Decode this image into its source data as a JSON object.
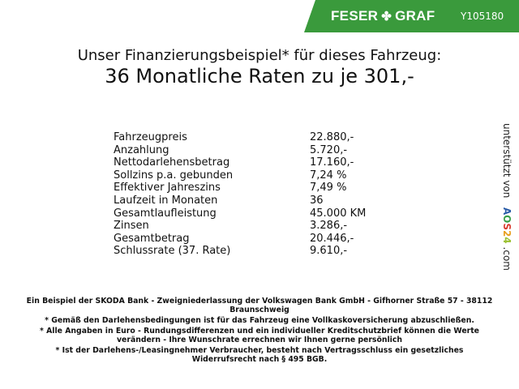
{
  "header": {
    "brand": "FESER",
    "brand2": "GRAF",
    "vehicle_id": "Y105180",
    "brand_color": "#3a9a3c"
  },
  "title": {
    "line1": "Unser Finanzierungsbeispiel* für dieses Fahrzeug:",
    "line2": "36 Monatliche Raten zu je 301,-"
  },
  "rows": [
    {
      "label": "Fahrzeugpreis",
      "value": "22.880,-"
    },
    {
      "label": "Anzahlung",
      "value": "5.720,-"
    },
    {
      "label": "Nettodarlehensbetrag",
      "value": "17.160,-"
    },
    {
      "label": "Sollzins p.a. gebunden",
      "value": "7,24 %"
    },
    {
      "label": "Effektiver Jahreszins",
      "value": "7,49 %"
    },
    {
      "label": "Laufzeit in Monaten",
      "value": "36"
    },
    {
      "label": "Gesamtlaufleistung",
      "value": "45.000 KM"
    },
    {
      "label": "Zinsen",
      "value": "3.286,-"
    },
    {
      "label": "Gesamtbetrag",
      "value": "20.446,-"
    },
    {
      "label": "Schlussrate (37. Rate)",
      "value": "9.610,-"
    }
  ],
  "side": {
    "text": "unterstützt von",
    "logo": [
      "A",
      "O",
      "S",
      "2",
      "4"
    ],
    "suffix": ".com"
  },
  "footer": [
    "Ein Beispiel der SKODA Bank - Zweigniederlassung der Volkswagen Bank GmbH - Gifhorner Straße 57 - 38112 Braunschweig",
    "* Gemäß den Darlehensbedingungen ist für das Fahrzeug eine Vollkaskoversicherung abzuschließen.",
    "* Alle Angaben in Euro - Rundungsdifferenzen und ein individueller Kreditschutzbrief können die Werte verändern - Ihre Wunschrate errechnen wir Ihnen gerne persönlich",
    "* Ist der Darlehens-/Leasingnehmer Verbraucher, besteht nach Vertragsschluss ein gesetzliches Widerrufsrecht nach § 495 BGB."
  ]
}
